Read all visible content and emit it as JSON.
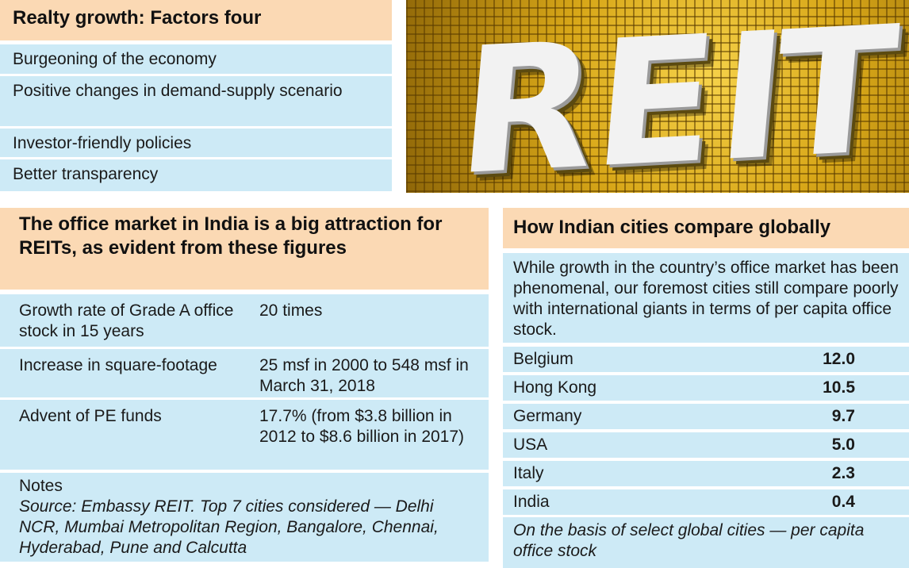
{
  "realty": {
    "title": "Realty growth: Factors four",
    "factors": [
      "Burgeoning of the economy",
      "Positive changes in demand-supply scenario",
      "Investor-friendly policies",
      "Better transparency"
    ]
  },
  "image": {
    "letters": [
      "R",
      "E",
      "I",
      "T"
    ]
  },
  "office": {
    "title": "The office market in India is a big attraction for REITs, as evident from these figures",
    "rows": [
      {
        "label": "Growth rate of Grade A office stock in 15 years",
        "value": "20 times"
      },
      {
        "label": "Increase in square-footage",
        "value": "25 msf in 2000 to 548 msf in March 31, 2018"
      },
      {
        "label": "Advent of PE funds",
        "value": "17.7% (from $3.8 billion in 2012 to $8.6 billion in 2017)"
      }
    ],
    "notes_heading": "Notes",
    "notes_text": "Source: Embassy REIT. Top 7 cities considered — Delhi NCR, Mumbai Metropolitan Region, Bangalore, Chennai, Hyderabad, Pune and Calcutta"
  },
  "global": {
    "title": "How Indian cities compare globally",
    "intro": "While growth in the country’s office market has been phenomenal, our foremost cities still compare poorly with international giants in terms of per capita office stock.",
    "countries": [
      {
        "name": "Belgium",
        "value": "12.0"
      },
      {
        "name": "Hong Kong",
        "value": "10.5"
      },
      {
        "name": "Germany",
        "value": "9.7"
      },
      {
        "name": "USA",
        "value": "5.0"
      },
      {
        "name": "Italy",
        "value": "2.3"
      },
      {
        "name": "India",
        "value": "0.4"
      }
    ],
    "footnote": "On the basis of select global cities — per capita office stock"
  },
  "colors": {
    "header_bg": "#fbd9b4",
    "cell_bg": "#cdeaf6"
  }
}
